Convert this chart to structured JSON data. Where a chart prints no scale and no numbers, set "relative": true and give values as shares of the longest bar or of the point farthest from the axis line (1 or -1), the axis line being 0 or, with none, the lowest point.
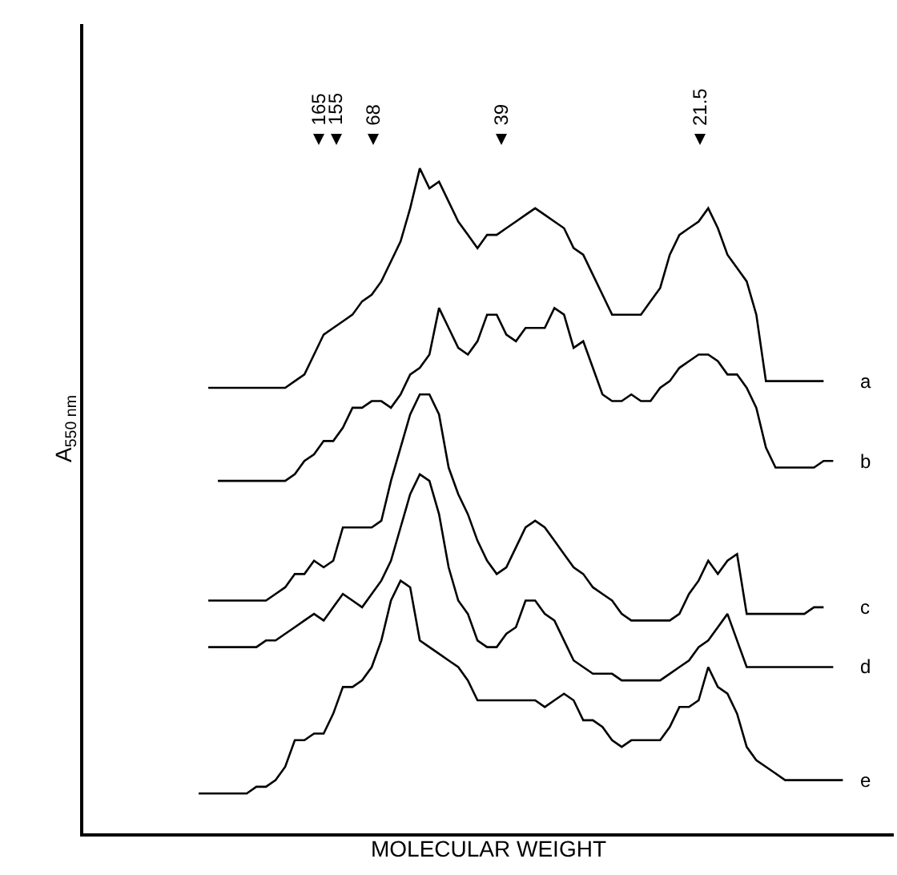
{
  "chart_data": {
    "type": "line",
    "relative": true,
    "legend": false,
    "xlabel": "MOLECULAR WEIGHT",
    "ylabel": "A$_{550 nm}$",
    "annotations": [
      "165",
      "155",
      "68",
      "39",
      "21.5"
    ],
    "categories": [
      null,
      null,
      null,
      null,
      null,
      null,
      null,
      null,
      null,
      null,
      null,
      null,
      null,
      null,
      null,
      null,
      null,
      null,
      null,
      null,
      null,
      null,
      null,
      null,
      null,
      null,
      null,
      null,
      null,
      null,
      null,
      null,
      null,
      null,
      null,
      null,
      null,
      null,
      null,
      null,
      null,
      null,
      null,
      null,
      null,
      null,
      null,
      null,
      null,
      null,
      null,
      null,
      null,
      null,
      null,
      null,
      null,
      null,
      null,
      null,
      null,
      null,
      null,
      null,
      null,
      null,
      null,
      null,
      null
    ],
    "series": [
      {
        "name": "a",
        "color": "#000000",
        "values": [
          null,
          null,
          0.67,
          0.67,
          0.67,
          0.67,
          0.67,
          0.67,
          0.67,
          0.67,
          0.67,
          0.68,
          0.69,
          0.72,
          0.75,
          0.76,
          0.77,
          0.78,
          0.8,
          0.81,
          0.83,
          0.86,
          0.89,
          0.94,
          1,
          0.97,
          0.98,
          0.95,
          0.92,
          0.9,
          0.88,
          0.9,
          0.9,
          0.91,
          0.92,
          0.93,
          0.94,
          0.93,
          0.92,
          0.91,
          0.88,
          0.87,
          0.84,
          0.81,
          0.78,
          0.78,
          0.78,
          0.78,
          0.8,
          0.82,
          0.87,
          0.9,
          0.91,
          0.92,
          0.94,
          0.91,
          0.87,
          0.85,
          0.83,
          0.78,
          0.68,
          0.68,
          0.68,
          0.68,
          0.68,
          0.68,
          0.68,
          null,
          null
        ]
      },
      {
        "name": "b",
        "color": "#000000",
        "values": [
          null,
          null,
          null,
          0.53,
          0.53,
          0.53,
          0.53,
          0.53,
          0.53,
          0.53,
          0.53,
          0.54,
          0.56,
          0.57,
          0.59,
          0.59,
          0.61,
          0.64,
          0.64,
          0.65,
          0.65,
          0.64,
          0.66,
          0.69,
          0.7,
          0.72,
          0.79,
          0.76,
          0.73,
          0.72,
          0.74,
          0.78,
          0.78,
          0.75,
          0.74,
          0.76,
          0.76,
          0.76,
          0.79,
          0.78,
          0.73,
          0.74,
          0.7,
          0.66,
          0.65,
          0.65,
          0.66,
          0.65,
          0.65,
          0.67,
          0.68,
          0.7,
          0.71,
          0.72,
          0.72,
          0.71,
          0.69,
          0.69,
          0.67,
          0.64,
          0.58,
          0.55,
          0.55,
          0.55,
          0.55,
          0.55,
          0.56,
          0.56,
          null
        ]
      },
      {
        "name": "c",
        "color": "#000000",
        "values": [
          null,
          null,
          0.35,
          0.35,
          0.35,
          0.35,
          0.35,
          0.35,
          0.35,
          0.36,
          0.37,
          0.39,
          0.39,
          0.41,
          0.4,
          0.41,
          0.46,
          0.46,
          0.46,
          0.46,
          0.47,
          0.53,
          0.58,
          0.63,
          0.66,
          0.66,
          0.63,
          0.55,
          0.51,
          0.48,
          0.44,
          0.41,
          0.39,
          0.4,
          0.43,
          0.46,
          0.47,
          0.46,
          0.44,
          0.42,
          0.4,
          0.39,
          0.37,
          0.36,
          0.35,
          0.33,
          0.32,
          0.32,
          0.32,
          0.32,
          0.32,
          0.33,
          0.36,
          0.38,
          0.41,
          0.39,
          0.41,
          0.42,
          0.33,
          0.33,
          0.33,
          0.33,
          0.33,
          0.33,
          0.33,
          0.34,
          0.34,
          null,
          null
        ]
      },
      {
        "name": "d",
        "color": "#000000",
        "values": [
          null,
          null,
          0.28,
          0.28,
          0.28,
          0.28,
          0.28,
          0.28,
          0.29,
          0.29,
          0.3,
          0.31,
          0.32,
          0.33,
          0.32,
          0.34,
          0.36,
          0.35,
          0.34,
          0.36,
          0.38,
          0.41,
          0.46,
          0.51,
          0.54,
          0.53,
          0.48,
          0.4,
          0.35,
          0.33,
          0.29,
          0.28,
          0.28,
          0.3,
          0.31,
          0.35,
          0.35,
          0.33,
          0.32,
          0.29,
          0.26,
          0.25,
          0.24,
          0.24,
          0.24,
          0.23,
          0.23,
          0.23,
          0.23,
          0.23,
          0.24,
          0.25,
          0.26,
          0.28,
          0.29,
          0.31,
          0.33,
          0.29,
          0.25,
          0.25,
          0.25,
          0.25,
          0.25,
          0.25,
          0.25,
          0.25,
          0.25,
          0.25,
          null
        ]
      },
      {
        "name": "e",
        "color": "#000000",
        "values": [
          null,
          0.06,
          0.06,
          0.06,
          0.06,
          0.06,
          0.06,
          0.07,
          0.07,
          0.08,
          0.1,
          0.14,
          0.14,
          0.15,
          0.15,
          0.18,
          0.22,
          0.22,
          0.23,
          0.25,
          0.29,
          0.35,
          0.38,
          0.37,
          0.29,
          0.28,
          0.27,
          0.26,
          0.25,
          0.23,
          0.2,
          0.2,
          0.2,
          0.2,
          0.2,
          0.2,
          0.2,
          0.19,
          0.2,
          0.21,
          0.2,
          0.17,
          0.17,
          0.16,
          0.14,
          0.13,
          0.14,
          0.14,
          0.14,
          0.14,
          0.16,
          0.19,
          0.19,
          0.2,
          0.25,
          0.22,
          0.21,
          0.18,
          0.13,
          0.11,
          0.1,
          0.09,
          0.08,
          0.08,
          0.08,
          0.08,
          0.08,
          0.08,
          0.08
        ]
      }
    ]
  }
}
